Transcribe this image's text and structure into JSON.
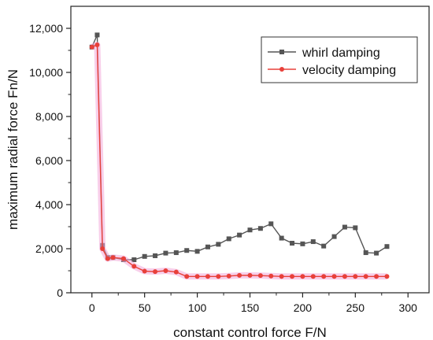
{
  "chart_data": {
    "type": "line",
    "title": "",
    "xlabel": "constant control force F/N",
    "ylabel": "maximum radial force Fn/N",
    "xlim": [
      -20,
      320
    ],
    "ylim": [
      0,
      13000
    ],
    "xticks": [
      0,
      50,
      100,
      150,
      200,
      250,
      300
    ],
    "yticks": [
      0,
      2000,
      4000,
      6000,
      8000,
      10000,
      12000
    ],
    "xtick_labels": [
      "0",
      "50",
      "100",
      "150",
      "200",
      "250",
      "300"
    ],
    "ytick_labels": [
      "0",
      "2,000",
      "4,000",
      "6,000",
      "8,000",
      "10,000",
      "12,000"
    ],
    "grid": false,
    "legend_position": "top-right",
    "series": [
      {
        "name": "whirl damping",
        "color": "#555555",
        "marker": "square",
        "x": [
          0,
          5,
          10,
          15,
          20,
          30,
          40,
          50,
          60,
          70,
          80,
          90,
          100,
          110,
          120,
          130,
          140,
          150,
          160,
          170,
          180,
          190,
          200,
          210,
          220,
          230,
          240,
          250,
          260,
          270,
          280
        ],
        "y": [
          11150,
          11700,
          2150,
          1600,
          1600,
          1500,
          1500,
          1650,
          1680,
          1800,
          1820,
          1920,
          1880,
          2080,
          2200,
          2450,
          2620,
          2850,
          2920,
          3130,
          2480,
          2250,
          2220,
          2320,
          2120,
          2550,
          2980,
          2950,
          1820,
          1800,
          2100
        ]
      },
      {
        "name": "velocity damping",
        "color": "#e8403a",
        "marker": "circle",
        "x": [
          0,
          5,
          10,
          15,
          20,
          30,
          40,
          50,
          60,
          70,
          80,
          90,
          100,
          110,
          120,
          130,
          140,
          150,
          160,
          170,
          180,
          190,
          200,
          210,
          220,
          230,
          240,
          250,
          260,
          270,
          280
        ],
        "y": [
          11150,
          11250,
          2000,
          1550,
          1600,
          1550,
          1200,
          980,
          960,
          1000,
          940,
          740,
          740,
          740,
          740,
          760,
          790,
          790,
          780,
          760,
          740,
          740,
          740,
          740,
          740,
          740,
          740,
          740,
          740,
          740,
          740
        ]
      }
    ]
  }
}
